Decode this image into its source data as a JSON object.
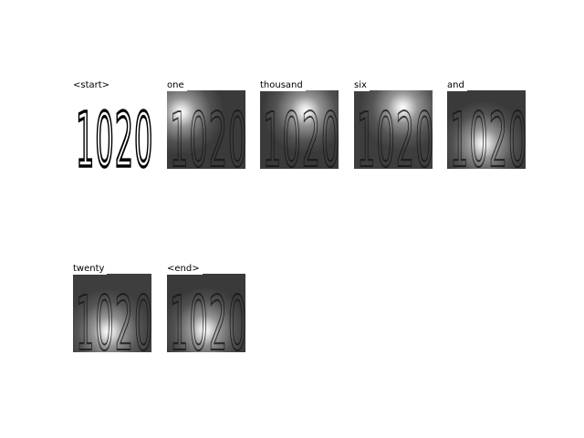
{
  "figure": {
    "panels": [
      {
        "token": "<start>",
        "kind": "original"
      },
      {
        "token": "one",
        "kind": "attention",
        "hotspot": [
          0.18,
          0.28
        ],
        "base": "#3a3a3a"
      },
      {
        "token": "thousand",
        "kind": "attention",
        "hotspot": [
          0.58,
          0.26
        ],
        "base": "#3a3a3a"
      },
      {
        "token": "six",
        "kind": "attention",
        "hotspot": [
          0.62,
          0.22
        ],
        "base": "#3e3e3e"
      },
      {
        "token": "and",
        "kind": "attention",
        "hotspot": [
          0.46,
          0.68
        ],
        "base": "#3a3a3a"
      },
      {
        "token": "twenty",
        "kind": "attention",
        "hotspot": [
          0.45,
          0.74
        ],
        "base": "#3e3e3e"
      },
      {
        "token": "<end>",
        "kind": "attention",
        "hotspot": [
          0.48,
          0.72
        ],
        "base": "#3a3a3a"
      }
    ],
    "digit_text": "1020",
    "colors": {
      "label_bg": "#ffffff",
      "label_text": "#000000",
      "hotspot": "#ffffff"
    }
  }
}
